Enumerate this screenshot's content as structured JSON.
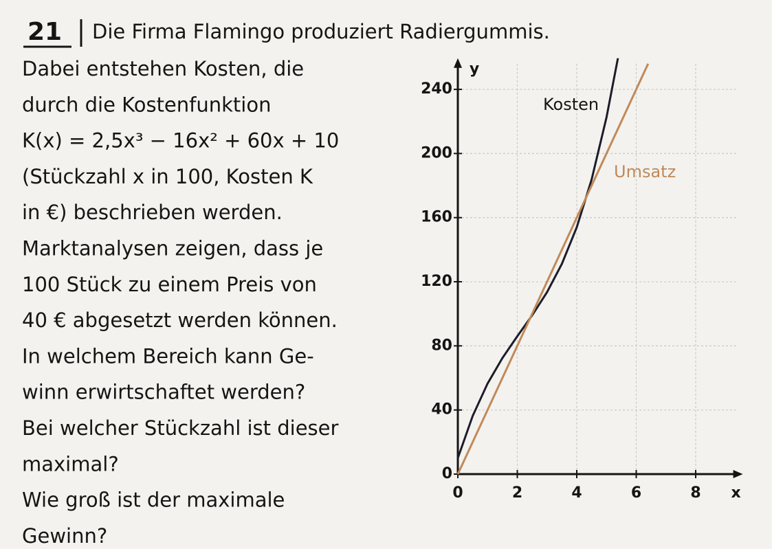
{
  "document": {
    "number": "21",
    "title": "Die Firma Flamingo produziert Radiergummis.",
    "lines": [
      "Dabei entstehen Kosten, die",
      "durch die Kostenfunktion",
      "K(x) = 2,5x³ − 16x² + 60x + 10",
      "(Stückzahl x in 100, Kosten K",
      "in €) beschrieben werden.",
      "Marktanalysen zeigen, dass je",
      "100 Stück zu einem Preis von",
      "40 € abgesetzt werden können.",
      "In welchem Bereich kann Ge-",
      "winn erwirtschaftet werden?",
      "Bei welcher Stückzahl ist dieser",
      "maximal?",
      "Wie groß ist der maximale",
      "Gewinn?"
    ]
  },
  "chart_data": {
    "type": "line",
    "x_label": "x",
    "y_label": "y",
    "xlim": [
      0,
      9.4
    ],
    "ylim": [
      0,
      256
    ],
    "xticks": [
      0,
      2,
      4,
      6,
      8
    ],
    "yticks": [
      0,
      40,
      80,
      120,
      160,
      200,
      240
    ],
    "grid": true,
    "series": [
      {
        "name": "Kosten",
        "color": "#1c1c2a",
        "x": [
          0,
          0.5,
          1,
          1.5,
          2,
          2.5,
          3,
          3.5,
          4,
          4.5,
          5,
          5.4
        ],
        "values": [
          10,
          36.31,
          56.5,
          72.44,
          86,
          99.06,
          113.5,
          131.19,
          154,
          183.81,
          222.5,
          261
        ]
      },
      {
        "name": "Umsatz",
        "color": "#c0895a",
        "x": [
          0,
          6.4
        ],
        "values": [
          0,
          256
        ]
      }
    ]
  }
}
